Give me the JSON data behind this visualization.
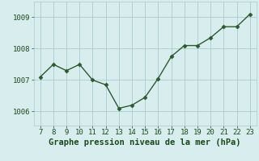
{
  "x": [
    7,
    8,
    9,
    10,
    11,
    12,
    13,
    14,
    15,
    16,
    17,
    18,
    19,
    20,
    21,
    22,
    23
  ],
  "y": [
    1007.1,
    1007.5,
    1007.3,
    1007.5,
    1007.0,
    1006.85,
    1006.1,
    1006.2,
    1006.45,
    1007.05,
    1007.75,
    1008.1,
    1008.1,
    1008.35,
    1008.7,
    1008.7,
    1009.1
  ],
  "line_color": "#2d5a2d",
  "marker": "D",
  "marker_size": 2.5,
  "line_width": 1.0,
  "bg_color": "#d8eded",
  "plot_bg_color": "#d8eded",
  "grid_color": "#a8cccc",
  "xlabel": "Graphe pression niveau de la mer (hPa)",
  "xlabel_color": "#1a4a1a",
  "xlabel_fontsize": 7.5,
  "tick_color": "#1a4a1a",
  "tick_fontsize": 6.5,
  "yticks": [
    1006,
    1007,
    1008,
    1009
  ],
  "ylim": [
    1005.55,
    1009.5
  ],
  "xlim": [
    6.5,
    23.5
  ],
  "xticks": [
    7,
    8,
    9,
    10,
    11,
    12,
    13,
    14,
    15,
    16,
    17,
    18,
    19,
    20,
    21,
    22,
    23
  ]
}
